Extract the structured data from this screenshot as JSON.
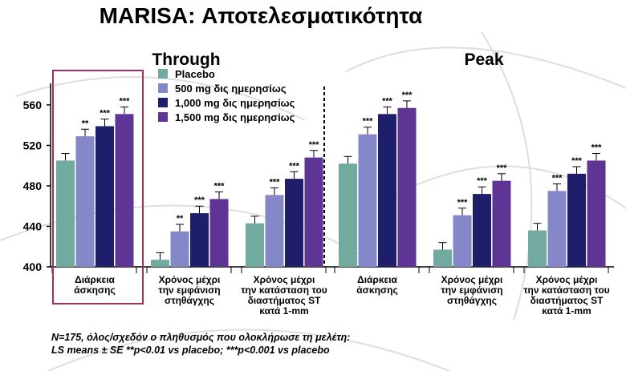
{
  "title": "MARISA: Αποτελεσματικότητα",
  "footnote": [
    "N=175, όλος/σχεδόν ο πληθυσμός που ολοκλήρωσε τη μελέτη:",
    "LS means ± SE   **p<0.01 vs placebo; ***p<0.001 vs placebo"
  ],
  "colors": {
    "Placebo": "#71ab9f",
    "500 mg δις ημερησίως": "#8488c8",
    "1,000 mg δις ημερησίως": "#1f1e6b",
    "1,500 mg δις ημερησίως": "#5e3594",
    "highlight": "#a0305f",
    "background_lines": "#dedede"
  },
  "chart_data": {
    "type": "bar",
    "ylim": [
      400,
      575
    ],
    "yticks": [
      400,
      440,
      480,
      520,
      560
    ],
    "legend": {
      "position": "top-center",
      "entries": [
        "Placebo",
        "500 mg δις ημερησίως",
        "1,000 mg δις ημερησίως",
        "1,500 mg δις ημερησίως"
      ]
    },
    "panels": [
      {
        "title": "Through",
        "groups": [
          {
            "label": [
              "Διάρκεια",
              "άσκησης"
            ],
            "highlighted": true,
            "values": [
              505,
              529,
              539,
              551
            ],
            "errors": [
              7,
              7,
              7,
              7
            ],
            "significance": [
              "",
              "**",
              "***",
              "***"
            ]
          },
          {
            "label": [
              "Χρόνος μέχρι",
              "την εμφάνιση",
              "στηθάγχης"
            ],
            "highlighted": false,
            "values": [
              407,
              435,
              453,
              467
            ],
            "errors": [
              7,
              7,
              7,
              7
            ],
            "significance": [
              "",
              "**",
              "***",
              "***"
            ]
          },
          {
            "label": [
              "Χρόνος μέχρι",
              "την κατάσταση του",
              "διαστήματος ST",
              "κατά 1-mm"
            ],
            "highlighted": false,
            "values": [
              443,
              471,
              487,
              508
            ],
            "errors": [
              7,
              7,
              7,
              7
            ],
            "significance": [
              "",
              "***",
              "***",
              "***"
            ]
          }
        ]
      },
      {
        "title": "Peak",
        "groups": [
          {
            "label": [
              "Διάρκεια",
              "άσκησης"
            ],
            "highlighted": false,
            "values": [
              502,
              531,
              551,
              557
            ],
            "errors": [
              7,
              7,
              7,
              7
            ],
            "significance": [
              "",
              "***",
              "***",
              "***"
            ]
          },
          {
            "label": [
              "Χρόνος μέχρι",
              "την εμφάνιση",
              "στηθάγχης"
            ],
            "highlighted": false,
            "values": [
              417,
              451,
              472,
              485
            ],
            "errors": [
              7,
              7,
              7,
              7
            ],
            "significance": [
              "",
              "***",
              "***",
              "***"
            ]
          },
          {
            "label": [
              "Χρόνος μέχρι",
              "την κατάσταση του",
              "διαστήματος ST",
              "κατά 1-mm"
            ],
            "highlighted": false,
            "values": [
              436,
              475,
              492,
              505
            ],
            "errors": [
              7,
              7,
              7,
              7
            ],
            "significance": [
              "",
              "***",
              "***",
              "***"
            ]
          }
        ]
      }
    ]
  }
}
